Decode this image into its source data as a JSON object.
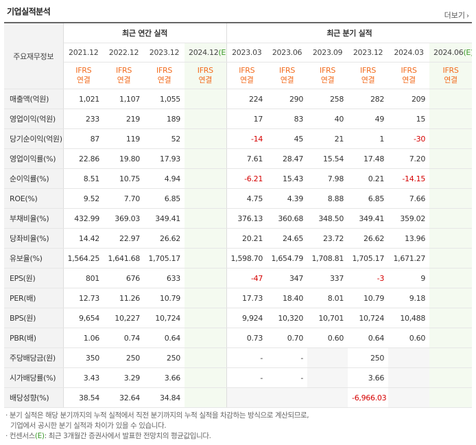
{
  "section_title": "기업실적분석",
  "more_label": "더보기",
  "more_arrow": "›",
  "item_header": "주요재무정보",
  "group_annual": "최근 연간 실적",
  "group_quarter": "최근 분기 실적",
  "periods": [
    "2021.12",
    "2022.12",
    "2023.12",
    "2024.12",
    "2023.03",
    "2023.06",
    "2023.09",
    "2023.12",
    "2024.03",
    "2024.06"
  ],
  "est_mark": "(E)",
  "ifrs_line1": "IFRS",
  "ifrs_line2": "연결",
  "rows": [
    {
      "label": "매출액(억원)",
      "values": [
        "1,021",
        "1,107",
        "1,055",
        "",
        "224",
        "290",
        "258",
        "282",
        "209",
        ""
      ]
    },
    {
      "label": "영업이익(억원)",
      "values": [
        "233",
        "219",
        "189",
        "",
        "17",
        "83",
        "40",
        "49",
        "15",
        ""
      ]
    },
    {
      "label": "당기순이익(억원)",
      "values": [
        "87",
        "119",
        "52",
        "",
        "-14",
        "45",
        "21",
        "1",
        "-30",
        ""
      ]
    },
    {
      "label": "영업이익률(%)",
      "values": [
        "22.86",
        "19.80",
        "17.93",
        "",
        "7.61",
        "28.47",
        "15.54",
        "17.48",
        "7.20",
        ""
      ]
    },
    {
      "label": "순이익률(%)",
      "values": [
        "8.51",
        "10.75",
        "4.94",
        "",
        "-6.21",
        "15.43",
        "7.98",
        "0.21",
        "-14.15",
        ""
      ]
    },
    {
      "label": "ROE(%)",
      "values": [
        "9.52",
        "7.70",
        "6.85",
        "",
        "4.75",
        "4.39",
        "8.88",
        "6.85",
        "7.66",
        ""
      ]
    },
    {
      "label": "부채비율(%)",
      "values": [
        "432.99",
        "369.03",
        "349.41",
        "",
        "376.13",
        "360.68",
        "348.50",
        "349.41",
        "359.02",
        ""
      ]
    },
    {
      "label": "당좌비율(%)",
      "values": [
        "14.42",
        "22.97",
        "26.62",
        "",
        "20.21",
        "24.65",
        "23.72",
        "26.62",
        "13.96",
        ""
      ]
    },
    {
      "label": "유보율(%)",
      "values": [
        "1,564.25",
        "1,641.68",
        "1,705.17",
        "",
        "1,598.70",
        "1,654.79",
        "1,708.81",
        "1,705.17",
        "1,671.27",
        ""
      ]
    },
    {
      "label": "EPS(원)",
      "values": [
        "801",
        "676",
        "633",
        "",
        "-47",
        "347",
        "337",
        "-3",
        "9",
        ""
      ]
    },
    {
      "label": "PER(배)",
      "values": [
        "12.73",
        "11.26",
        "10.79",
        "",
        "17.73",
        "18.40",
        "8.01",
        "10.79",
        "9.18",
        ""
      ]
    },
    {
      "label": "BPS(원)",
      "values": [
        "9,654",
        "10,227",
        "10,724",
        "",
        "9,924",
        "10,320",
        "10,701",
        "10,724",
        "10,488",
        ""
      ]
    },
    {
      "label": "PBR(배)",
      "values": [
        "1.06",
        "0.74",
        "0.64",
        "",
        "0.73",
        "0.70",
        "0.60",
        "0.64",
        "0.60",
        ""
      ]
    },
    {
      "label": "주당배당금(원)",
      "values": [
        "350",
        "250",
        "250",
        "",
        "-",
        "-",
        "",
        "250",
        "",
        ""
      ]
    },
    {
      "label": "시가배당률(%)",
      "values": [
        "3.43",
        "3.29",
        "3.66",
        "",
        "-",
        "-",
        "",
        "3.66",
        "",
        ""
      ]
    },
    {
      "label": "배당성향(%)",
      "values": [
        "38.54",
        "32.64",
        "34.84",
        "",
        "",
        "",
        "",
        "-6,966.03",
        "",
        ""
      ]
    }
  ],
  "notes": {
    "line1": "· 분기 실적은 해당 분기까지의 누적 실적에서 직전 분기까지의 누적 실적을 차감하는 방식으로 계산되므로,",
    "line2": "기업에서 공시한 분기 실적과 차이가 있을 수 있습니다.",
    "line3a": "· 컨센서스",
    "line3e": "(E)",
    "line3b": ": 최근 3개월간 증권사에서 발표한 전망치의 평균값입니다."
  }
}
